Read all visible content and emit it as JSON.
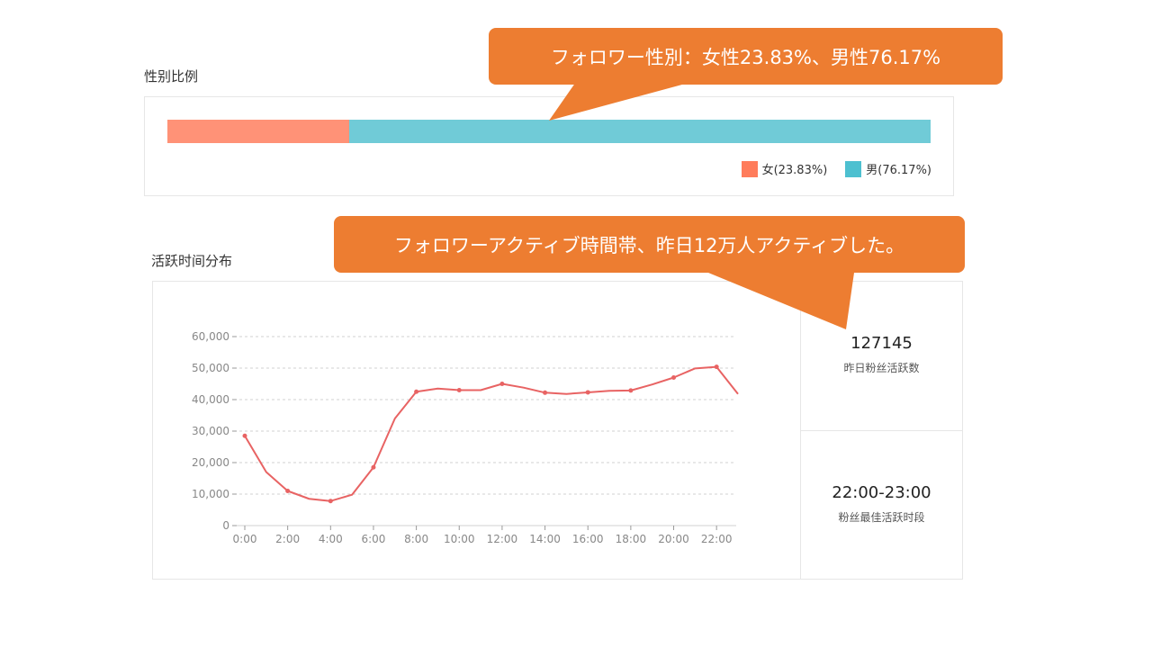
{
  "gender": {
    "section_title": "性别比例",
    "female_pct": 23.83,
    "male_pct": 76.17,
    "female_color": "#ff9277",
    "male_color": "#70cbd7",
    "legend": [
      {
        "label": "女(23.83%)",
        "color": "#ff7c5b"
      },
      {
        "label": "男(76.17%)",
        "color": "#4dc0d0"
      }
    ]
  },
  "activity": {
    "section_title": "活跃时间分布",
    "stats": [
      {
        "value": "127145",
        "label": "昨日粉丝活跃数"
      },
      {
        "value": "22:00-23:00",
        "label": "粉丝最佳活跃时段"
      }
    ]
  },
  "callouts": {
    "gender": "フォロワー性別：女性23.83%、男性76.17%",
    "activity": "フォロワーアクティブ時間帯、昨日12万人アクティブした。",
    "color": "#ed7d31"
  },
  "chart_data": {
    "type": "line",
    "x": [
      "0:00",
      "1:00",
      "2:00",
      "3:00",
      "4:00",
      "5:00",
      "6:00",
      "7:00",
      "8:00",
      "9:00",
      "10:00",
      "11:00",
      "12:00",
      "13:00",
      "14:00",
      "15:00",
      "16:00",
      "17:00",
      "18:00",
      "19:00",
      "20:00",
      "21:00",
      "22:00",
      "23:00"
    ],
    "x_tick_labels": [
      "0:00",
      "2:00",
      "4:00",
      "6:00",
      "8:00",
      "10:00",
      "12:00",
      "14:00",
      "16:00",
      "18:00",
      "20:00",
      "22:00"
    ],
    "series": [
      {
        "values": [
          28500,
          17000,
          11000,
          8500,
          7800,
          9800,
          18500,
          34000,
          42500,
          43500,
          43000,
          43000,
          45000,
          43800,
          42200,
          41800,
          42300,
          42800,
          42900,
          44800,
          47000,
          49900,
          50400,
          41800
        ],
        "color": "#e86363",
        "marked_points": [
          "0:00",
          "2:00",
          "4:00",
          "6:00",
          "8:00",
          "10:00",
          "12:00",
          "14:00",
          "16:00",
          "18:00",
          "20:00",
          "22:00"
        ]
      }
    ],
    "y_ticks": [
      0,
      10000,
      20000,
      30000,
      40000,
      50000,
      60000
    ],
    "y_tick_labels": [
      "0",
      "10,000",
      "20,000",
      "30,000",
      "40,000",
      "50,000",
      "60,000"
    ],
    "ylim": [
      0,
      60000
    ],
    "grid": true
  }
}
